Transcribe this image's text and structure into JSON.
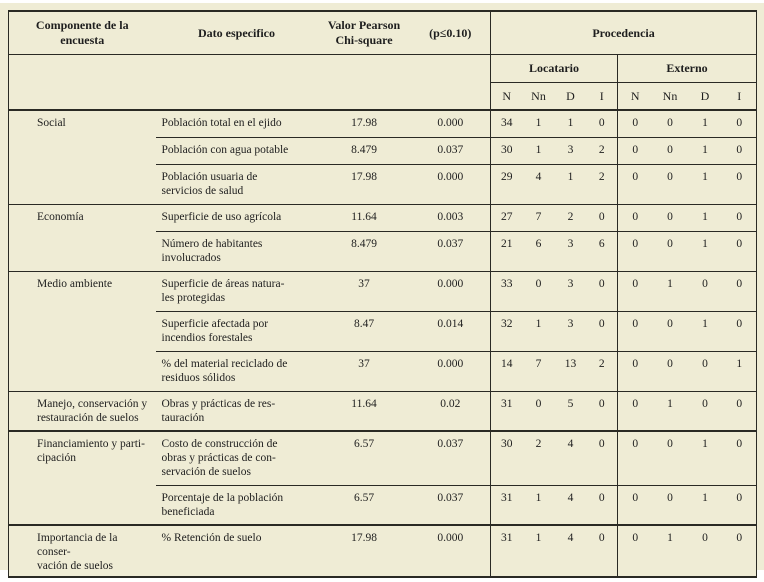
{
  "colors": {
    "background": "#efecd5",
    "border": "#2a2a24",
    "text": "#1e1e1e"
  },
  "table": {
    "header": {
      "componente": "Componente de la\nencuesta",
      "dato": "Dato especifico",
      "valor": "Valor Pearson\nChi-square",
      "p": "(p≤0.10)",
      "procedencia": "Procedencia",
      "locatario": "Locatario",
      "externo": "Externo",
      "subcols": [
        "N",
        "Nn",
        "D",
        "I"
      ]
    },
    "groups": [
      {
        "componente": "Social",
        "rows": [
          {
            "dato": "Población total en el ejido",
            "valor": "17.98",
            "p": "0.000",
            "loc": [
              "34",
              "1",
              "1",
              "0"
            ],
            "ext": [
              "0",
              "0",
              "1",
              "0"
            ]
          },
          {
            "dato": "Población con agua potable",
            "valor": "8.479",
            "p": "0.037",
            "loc": [
              "30",
              "1",
              "3",
              "2"
            ],
            "ext": [
              "0",
              "0",
              "1",
              "0"
            ]
          },
          {
            "dato": "Población usuaria de\nservicios de salud",
            "valor": "17.98",
            "p": "0.000",
            "loc": [
              "29",
              "4",
              "1",
              "2"
            ],
            "ext": [
              "0",
              "0",
              "1",
              "0"
            ]
          }
        ]
      },
      {
        "componente": "Economía",
        "rows": [
          {
            "dato": "Superficie de uso agrícola",
            "valor": "11.64",
            "p": "0.003",
            "loc": [
              "27",
              "7",
              "2",
              "0"
            ],
            "ext": [
              "0",
              "0",
              "1",
              "0"
            ]
          },
          {
            "dato": "Número de habitantes\ninvolucrados",
            "valor": "8.479",
            "p": "0.037",
            "loc": [
              "21",
              "6",
              "3",
              "6"
            ],
            "ext": [
              "0",
              "0",
              "1",
              "0"
            ]
          }
        ]
      },
      {
        "componente": "Medio ambiente",
        "rows": [
          {
            "dato": "Superficie de áreas natura-\nles protegidas",
            "valor": "37",
            "p": "0.000",
            "loc": [
              "33",
              "0",
              "3",
              "0"
            ],
            "ext": [
              "0",
              "1",
              "0",
              "0"
            ]
          },
          {
            "dato": "Superficie afectada por\nincendios forestales",
            "valor": "8.47",
            "p": "0.014",
            "loc": [
              "32",
              "1",
              "3",
              "0"
            ],
            "ext": [
              "0",
              "0",
              "1",
              "0"
            ]
          },
          {
            "dato": "% del material reciclado de\nresiduos sólidos",
            "valor": "37",
            "p": "0.000",
            "loc": [
              "14",
              "7",
              "13",
              "2"
            ],
            "ext": [
              "0",
              "0",
              "0",
              "1"
            ]
          }
        ]
      },
      {
        "componente": "Manejo, conservación y\nrestauración de suelos",
        "rows": [
          {
            "dato": "Obras y prácticas de res-\ntauración",
            "valor": "11.64",
            "p": "0.02",
            "loc": [
              "31",
              "0",
              "5",
              "0"
            ],
            "ext": [
              "0",
              "1",
              "0",
              "0"
            ]
          }
        ]
      },
      {
        "componente": "Financiamiento y parti-\ncipación",
        "rows": [
          {
            "dato": "Costo de construcción de\nobras y prácticas de con-\nservación de suelos",
            "valor": "6.57",
            "p": "0.037",
            "loc": [
              "30",
              "2",
              "4",
              "0"
            ],
            "ext": [
              "0",
              "0",
              "1",
              "0"
            ]
          },
          {
            "dato": "Porcentaje de la población\nbeneficiada",
            "valor": "6.57",
            "p": "0.037",
            "loc": [
              "31",
              "1",
              "4",
              "0"
            ],
            "ext": [
              "0",
              "0",
              "1",
              "0"
            ]
          }
        ]
      },
      {
        "componente": "Importancia de la conser-\nvación de suelos",
        "rows": [
          {
            "dato": "% Retención de suelo",
            "valor": "17.98",
            "p": "0.000",
            "loc": [
              "31",
              "1",
              "4",
              "0"
            ],
            "ext": [
              "0",
              "1",
              "0",
              "0"
            ]
          }
        ]
      }
    ]
  }
}
